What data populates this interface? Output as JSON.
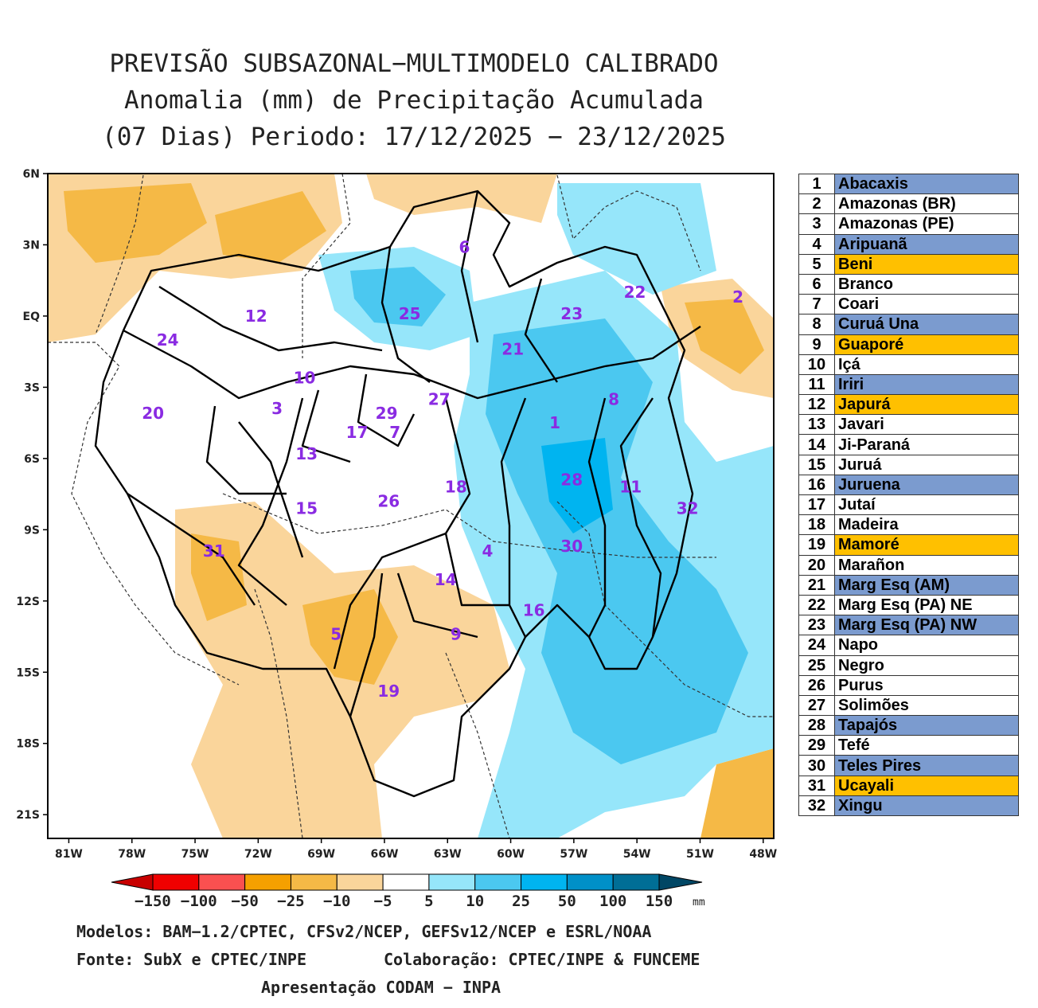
{
  "title": {
    "line1": "PREVISÃO SUBSAZONAL−MULTIMODELO CALIBRADO",
    "line2": "Anomalia (mm) de Precipitação Acumulada",
    "line3": "(07 Dias) Periodo: 17/12/2025 − 23/12/2025"
  },
  "map": {
    "lat_ticks": [
      "6N",
      "3N",
      "EQ",
      "3S",
      "6S",
      "9S",
      "12S",
      "15S",
      "18S",
      "21S"
    ],
    "lon_ticks": [
      "81W",
      "78W",
      "75W",
      "72W",
      "69W",
      "66W",
      "63W",
      "60W",
      "57W",
      "54W",
      "51W",
      "48W"
    ],
    "lat_range": [
      6,
      -22
    ],
    "lon_range": [
      -82,
      -47.5
    ],
    "basin_labels": [
      {
        "id": "1",
        "lat": -4.5,
        "lon": -57.9
      },
      {
        "id": "2",
        "lat": 0.8,
        "lon": -49.2
      },
      {
        "id": "3",
        "lat": -3.9,
        "lon": -71.1
      },
      {
        "id": "4",
        "lat": -9.9,
        "lon": -61.1
      },
      {
        "id": "5",
        "lat": -13.4,
        "lon": -68.3
      },
      {
        "id": "6",
        "lat": 2.9,
        "lon": -62.2
      },
      {
        "id": "7",
        "lat": -4.9,
        "lon": -65.5
      },
      {
        "id": "8",
        "lat": -3.5,
        "lon": -55.1
      },
      {
        "id": "9",
        "lat": -13.4,
        "lon": -62.6
      },
      {
        "id": "10",
        "lat": -2.6,
        "lon": -69.8
      },
      {
        "id": "11",
        "lat": -7.2,
        "lon": -54.3
      },
      {
        "id": "12",
        "lat": 0.0,
        "lon": -72.1
      },
      {
        "id": "13",
        "lat": -5.8,
        "lon": -69.7
      },
      {
        "id": "14",
        "lat": -11.1,
        "lon": -63.1
      },
      {
        "id": "15",
        "lat": -8.1,
        "lon": -69.7
      },
      {
        "id": "16",
        "lat": -12.4,
        "lon": -58.9
      },
      {
        "id": "17",
        "lat": -4.9,
        "lon": -67.3
      },
      {
        "id": "18",
        "lat": -7.2,
        "lon": -62.6
      },
      {
        "id": "19",
        "lat": -15.8,
        "lon": -65.8
      },
      {
        "id": "20",
        "lat": -4.1,
        "lon": -77.0
      },
      {
        "id": "21",
        "lat": -1.4,
        "lon": -59.9
      },
      {
        "id": "22",
        "lat": 1.0,
        "lon": -54.1
      },
      {
        "id": "23",
        "lat": 0.1,
        "lon": -57.1
      },
      {
        "id": "24",
        "lat": -1.0,
        "lon": -76.3
      },
      {
        "id": "25",
        "lat": 0.1,
        "lon": -64.8
      },
      {
        "id": "26",
        "lat": -7.8,
        "lon": -65.8
      },
      {
        "id": "27",
        "lat": -3.5,
        "lon": -63.4
      },
      {
        "id": "28",
        "lat": -6.9,
        "lon": -57.1
      },
      {
        "id": "29",
        "lat": -4.1,
        "lon": -65.9
      },
      {
        "id": "30",
        "lat": -9.7,
        "lon": -57.1
      },
      {
        "id": "31",
        "lat": -9.9,
        "lon": -74.1
      },
      {
        "id": "32",
        "lat": -8.1,
        "lon": -51.6
      }
    ]
  },
  "basins": [
    {
      "num": "1",
      "name": "Abacaxis",
      "color": "#7b9bcf"
    },
    {
      "num": "2",
      "name": "Amazonas (BR)",
      "color": "#ffffff"
    },
    {
      "num": "3",
      "name": "Amazonas (PE)",
      "color": "#ffffff"
    },
    {
      "num": "4",
      "name": "Aripuanã",
      "color": "#7b9bcf"
    },
    {
      "num": "5",
      "name": "Beni",
      "color": "#ffc000"
    },
    {
      "num": "6",
      "name": "Branco",
      "color": "#ffffff"
    },
    {
      "num": "7",
      "name": "Coari",
      "color": "#ffffff"
    },
    {
      "num": "8",
      "name": "Curuá Una",
      "color": "#7b9bcf"
    },
    {
      "num": "9",
      "name": "Guaporé",
      "color": "#ffc000"
    },
    {
      "num": "10",
      "name": "Içá",
      "color": "#ffffff"
    },
    {
      "num": "11",
      "name": "Iriri",
      "color": "#7b9bcf"
    },
    {
      "num": "12",
      "name": "Japurá",
      "color": "#ffc000"
    },
    {
      "num": "13",
      "name": "Javari",
      "color": "#ffffff"
    },
    {
      "num": "14",
      "name": "Ji-Paraná",
      "color": "#ffffff"
    },
    {
      "num": "15",
      "name": "Juruá",
      "color": "#ffffff"
    },
    {
      "num": "16",
      "name": "Juruena",
      "color": "#7b9bcf"
    },
    {
      "num": "17",
      "name": "Jutaí",
      "color": "#ffffff"
    },
    {
      "num": "18",
      "name": "Madeira",
      "color": "#ffffff"
    },
    {
      "num": "19",
      "name": "Mamoré",
      "color": "#ffc000"
    },
    {
      "num": "20",
      "name": "Marañon",
      "color": "#ffffff"
    },
    {
      "num": "21",
      "name": "Marg Esq (AM)",
      "color": "#7b9bcf"
    },
    {
      "num": "22",
      "name": "Marg Esq (PA) NE",
      "color": "#ffffff"
    },
    {
      "num": "23",
      "name": "Marg Esq (PA) NW",
      "color": "#7b9bcf"
    },
    {
      "num": "24",
      "name": "Napo",
      "color": "#ffffff"
    },
    {
      "num": "25",
      "name": "Negro",
      "color": "#ffffff"
    },
    {
      "num": "26",
      "name": "Purus",
      "color": "#ffffff"
    },
    {
      "num": "27",
      "name": "Solimões",
      "color": "#ffffff"
    },
    {
      "num": "28",
      "name": "Tapajós",
      "color": "#7b9bcf"
    },
    {
      "num": "29",
      "name": "Tefé",
      "color": "#ffffff"
    },
    {
      "num": "30",
      "name": "Teles Pires",
      "color": "#7b9bcf"
    },
    {
      "num": "31",
      "name": "Ucayali",
      "color": "#ffc000"
    },
    {
      "num": "32",
      "name": "Xingu",
      "color": "#7b9bcf"
    }
  ],
  "colorbar": {
    "labels": [
      "−150",
      "−100",
      "−50",
      "−25",
      "−10",
      "−5",
      "5",
      "10",
      "25",
      "50",
      "100",
      "150"
    ],
    "unit": "mm",
    "colors": [
      "#c80000",
      "#f00000",
      "#fa5050",
      "#f5a000",
      "#f5b946",
      "#fad59b",
      "#ffffff",
      "#96e6fa",
      "#4bc8f0",
      "#00b4f0",
      "#0090c8",
      "#006e96",
      "#004664"
    ]
  },
  "footer": {
    "models": "Modelos: BAM−1.2/CPTEC, CFSv2/NCEP, GEFSv12/NCEP e ESRL/NOAA",
    "source": "Fonte: SubX e CPTEC/INPE",
    "collab": "Colaboração: CPTEC/INPE & FUNCEME",
    "presentation": "Apresentação CODAM − INPA"
  }
}
